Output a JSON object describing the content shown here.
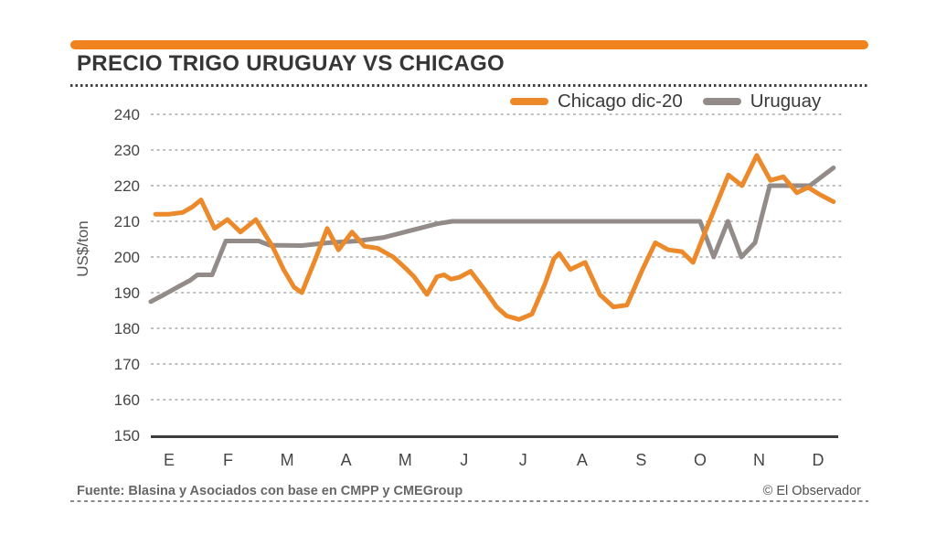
{
  "header": {
    "title": "PRECIO TRIGO URUGUAY VS CHICAGO",
    "bar_color": "#F0831D"
  },
  "legend": [
    {
      "label": "Chicago dic-20",
      "color": "#EC8A2B"
    },
    {
      "label": "Uruguay",
      "color": "#928B88"
    }
  ],
  "footer": {
    "source": "Fuente: Blasina y Asociados con base en CMPP y CMEGroup",
    "credit": "© El Observador"
  },
  "chart_data": {
    "type": "line",
    "title": "PRECIO TRIGO URUGUAY VS CHICAGO",
    "xlabel": "",
    "ylabel": "US$/ton",
    "ylim": [
      150,
      240
    ],
    "yticks": [
      150,
      160,
      170,
      180,
      190,
      200,
      210,
      220,
      230,
      240
    ],
    "categories": [
      "E",
      "F",
      "M",
      "A",
      "M",
      "J",
      "J",
      "A",
      "S",
      "O",
      "N",
      "D"
    ],
    "grid": "horizontal-dashed",
    "legend_position": "top-right",
    "axis_color": "#3d3d3d",
    "gridline_color": "#acacac",
    "tick_label_color": "#454545",
    "series": [
      {
        "name": "Uruguay",
        "color": "#928B88",
        "points": [
          [
            -0.31,
            187.5
          ],
          [
            -0.08,
            189.5
          ],
          [
            0.14,
            191.5
          ],
          [
            0.36,
            193.5
          ],
          [
            0.48,
            195
          ],
          [
            0.73,
            195
          ],
          [
            0.96,
            204.5
          ],
          [
            1.52,
            204.5
          ],
          [
            1.7,
            203.3
          ],
          [
            2.25,
            203.2
          ],
          [
            2.71,
            204
          ],
          [
            3.18,
            204.5
          ],
          [
            3.64,
            205.5
          ],
          [
            4.11,
            207.5
          ],
          [
            4.54,
            209.3
          ],
          [
            4.8,
            210
          ],
          [
            9.0,
            210
          ],
          [
            9.23,
            200
          ],
          [
            9.47,
            210
          ],
          [
            9.7,
            200
          ],
          [
            9.93,
            204
          ],
          [
            10.18,
            220
          ],
          [
            10.86,
            220
          ],
          [
            11.26,
            225
          ]
        ]
      },
      {
        "name": "Chicago dic-20",
        "color": "#EC8A2B",
        "points": [
          [
            -0.23,
            212
          ],
          [
            0,
            212
          ],
          [
            0.23,
            212.5
          ],
          [
            0.39,
            214
          ],
          [
            0.54,
            216
          ],
          [
            0.77,
            208
          ],
          [
            0.99,
            210.5
          ],
          [
            1.21,
            207
          ],
          [
            1.47,
            210.5
          ],
          [
            1.75,
            203
          ],
          [
            1.94,
            196.5
          ],
          [
            2.12,
            191.5
          ],
          [
            2.25,
            190
          ],
          [
            2.47,
            199
          ],
          [
            2.68,
            208
          ],
          [
            2.87,
            202
          ],
          [
            3.1,
            207
          ],
          [
            3.31,
            203
          ],
          [
            3.53,
            202.5
          ],
          [
            3.8,
            200
          ],
          [
            4.03,
            196.5
          ],
          [
            4.15,
            194.5
          ],
          [
            4.37,
            189.5
          ],
          [
            4.54,
            194.5
          ],
          [
            4.66,
            195
          ],
          [
            4.78,
            193.8
          ],
          [
            4.92,
            194.3
          ],
          [
            5.11,
            196
          ],
          [
            5.34,
            191
          ],
          [
            5.55,
            186
          ],
          [
            5.72,
            183.5
          ],
          [
            5.93,
            182.5
          ],
          [
            6.15,
            184
          ],
          [
            6.37,
            192.5
          ],
          [
            6.52,
            199.5
          ],
          [
            6.61,
            201
          ],
          [
            6.8,
            196.5
          ],
          [
            7.05,
            198.5
          ],
          [
            7.3,
            189.5
          ],
          [
            7.53,
            186
          ],
          [
            7.76,
            186.5
          ],
          [
            8.01,
            196
          ],
          [
            8.24,
            204
          ],
          [
            8.46,
            202
          ],
          [
            8.69,
            201.5
          ],
          [
            8.88,
            198.5
          ],
          [
            9.06,
            206
          ],
          [
            9.48,
            223
          ],
          [
            9.71,
            220
          ],
          [
            9.96,
            228.5
          ],
          [
            10.19,
            221.5
          ],
          [
            10.41,
            222.5
          ],
          [
            10.64,
            218
          ],
          [
            10.83,
            219.5
          ],
          [
            11.03,
            217.5
          ],
          [
            11.26,
            215.5
          ]
        ]
      }
    ]
  }
}
